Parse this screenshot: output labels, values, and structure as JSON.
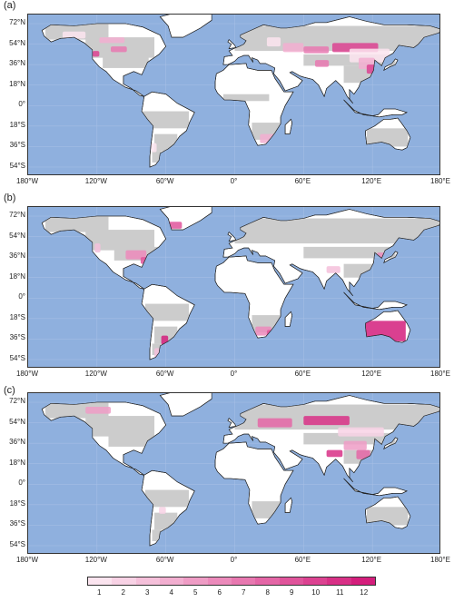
{
  "panels": [
    {
      "label": "(a)"
    },
    {
      "label": "(b)"
    },
    {
      "label": "(c)"
    }
  ],
  "lat_ticks": [
    "72°N",
    "54°N",
    "36°N",
    "18°N",
    "0°",
    "18°S",
    "36°S",
    "54°S"
  ],
  "lon_ticks": [
    "180°W",
    "120°W",
    "60°W",
    "0°",
    "60°E",
    "120°E",
    "180°E"
  ],
  "colorbar": {
    "ticks": [
      "1",
      "2",
      "3",
      "4",
      "5",
      "6",
      "7",
      "8",
      "9",
      "10",
      "11",
      "12"
    ],
    "colors": [
      "#fbe4ef",
      "#f8d2e5",
      "#f5c0da",
      "#f2aed0",
      "#ef9cc5",
      "#ec8abb",
      "#e878b0",
      "#e466a6",
      "#e0549b",
      "#dc4291",
      "#d83086",
      "#d41e7c"
    ]
  },
  "colors": {
    "ocean": "#8fb0de",
    "land_white": "#ffffff",
    "land_gray": "#cccccc",
    "highlight": "#e8669f"
  }
}
